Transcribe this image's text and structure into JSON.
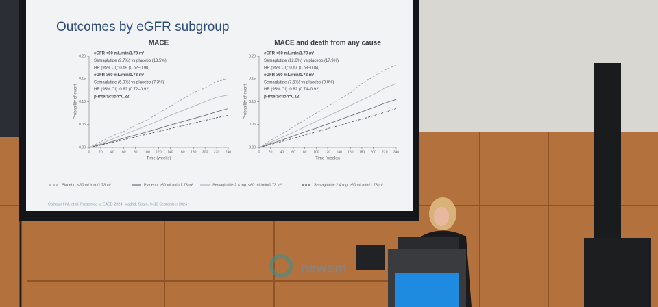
{
  "slide": {
    "title": "Outcomes by eGFR subgroup",
    "footnote": "Calhoun HM, et al. Presented at EASD 2024, Madrid, Spain, 9–13 September 2024"
  },
  "watermark": "newsm",
  "chart_data": [
    {
      "type": "line",
      "title": "MACE",
      "xlabel": "Time (weeks)",
      "ylabel": "Probability of event",
      "annotations": [
        "eGFR <60 mL/min/1.73 m²",
        "Semaglutide (9.7%) vs placebo (13.5%)",
        "HR (95% CI): 0.69 (0.52–0.90)",
        "eGFR ≥60 mL/min/1.73 m²",
        "Semaglutide (6.0%) vs placebo (7.3%)",
        "HR (95% CI): 0.82 (0.72–0.92)",
        "p-interaction=0.22"
      ],
      "x": [
        0,
        20,
        40,
        60,
        80,
        100,
        120,
        140,
        160,
        180,
        200,
        220,
        240
      ],
      "xlim": [
        0,
        240
      ],
      "xticks": [
        0,
        20,
        40,
        60,
        80,
        100,
        120,
        140,
        160,
        180,
        200,
        220,
        240
      ],
      "ylim": [
        0,
        0.2
      ],
      "yticks": [
        {
          "value": 0,
          "label": "0.00"
        },
        {
          "value": 0.05,
          "label": "0.05"
        },
        {
          "value": 0.1,
          "label": "0.10"
        },
        {
          "value": 0.15,
          "label": "0.15"
        },
        {
          "value": 0.2,
          "label": "0.20"
        }
      ],
      "series": [
        {
          "name": "Placebo, <60 mL/min/1.73 m²",
          "color": "#9aa0a8",
          "dashed": true,
          "values": [
            0,
            0.012,
            0.025,
            0.035,
            0.048,
            0.06,
            0.075,
            0.09,
            0.105,
            0.12,
            0.13,
            0.145,
            0.15
          ]
        },
        {
          "name": "Placebo, ≥60 mL/min/1.73 m²",
          "color": "#6b7078",
          "dashed": false,
          "values": [
            0,
            0.006,
            0.013,
            0.02,
            0.027,
            0.034,
            0.041,
            0.049,
            0.056,
            0.063,
            0.07,
            0.078,
            0.085
          ]
        },
        {
          "name": "Semaglutide 2.4 mg, <60 mL/min/1.73 m²",
          "color": "#b0b5bb",
          "dashed": false,
          "values": [
            0,
            0.008,
            0.018,
            0.028,
            0.038,
            0.048,
            0.058,
            0.07,
            0.08,
            0.09,
            0.1,
            0.11,
            0.115
          ]
        },
        {
          "name": "Semaglutide 2.4 mg, ≥60 mL/min/1.73 m²",
          "color": "#50555c",
          "dashed": true,
          "values": [
            0,
            0.005,
            0.011,
            0.017,
            0.023,
            0.029,
            0.035,
            0.041,
            0.047,
            0.053,
            0.059,
            0.065,
            0.07
          ]
        }
      ]
    },
    {
      "type": "line",
      "title": "MACE and death from any cause",
      "xlabel": "Time (weeks)",
      "ylabel": "Probability of event",
      "annotations": [
        "eGFR <60 mL/min/1.73 m²",
        "Semaglutide (12.6%) vs placebo (17.9%)",
        "HR (95% CI): 0.67 (0.53–0.84)",
        "eGFR ≥60 mL/min/1.73 m²",
        "Semaglutide (7.5%) vs placebo (9.0%)",
        "HR (95% CI): 0.82 (0.74–0.92)",
        "p-interaction=0.12"
      ],
      "x": [
        0,
        20,
        40,
        60,
        80,
        100,
        120,
        140,
        160,
        180,
        200,
        220,
        240
      ],
      "xlim": [
        0,
        240
      ],
      "xticks": [
        0,
        20,
        40,
        60,
        80,
        100,
        120,
        140,
        160,
        180,
        200,
        220,
        240
      ],
      "ylim": [
        0,
        0.2
      ],
      "yticks": [
        {
          "value": 0,
          "label": "0.00"
        },
        {
          "value": 0.05,
          "label": "0.05"
        },
        {
          "value": 0.1,
          "label": "0.10"
        },
        {
          "value": 0.15,
          "label": "0.15"
        },
        {
          "value": 0.2,
          "label": "0.20"
        }
      ],
      "series": [
        {
          "color": "#9aa0a8",
          "dashed": true,
          "values": [
            0,
            0.015,
            0.03,
            0.045,
            0.06,
            0.075,
            0.09,
            0.105,
            0.12,
            0.14,
            0.155,
            0.17,
            0.18
          ]
        },
        {
          "color": "#6b7078",
          "dashed": false,
          "values": [
            0,
            0.008,
            0.016,
            0.025,
            0.034,
            0.042,
            0.051,
            0.06,
            0.069,
            0.078,
            0.087,
            0.097,
            0.105
          ]
        },
        {
          "color": "#b0b5bb",
          "dashed": false,
          "values": [
            0,
            0.011,
            0.022,
            0.033,
            0.045,
            0.057,
            0.068,
            0.08,
            0.092,
            0.104,
            0.116,
            0.13,
            0.14
          ]
        },
        {
          "color": "#50555c",
          "dashed": true,
          "values": [
            0,
            0.006,
            0.013,
            0.02,
            0.027,
            0.034,
            0.041,
            0.048,
            0.055,
            0.062,
            0.069,
            0.077,
            0.085
          ]
        }
      ]
    }
  ]
}
